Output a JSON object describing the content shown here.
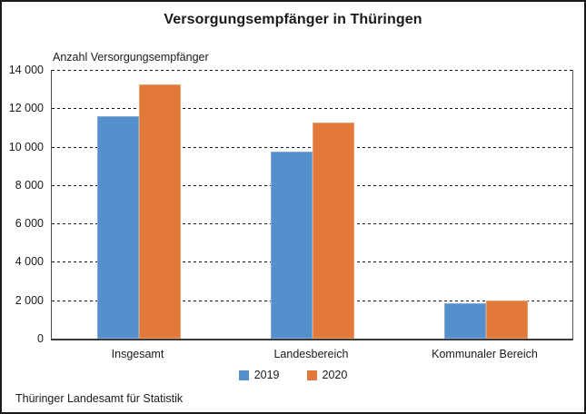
{
  "chart_data": {
    "type": "bar",
    "title": "Versorgungsempfänger in Thüringen",
    "ylabel": "Anzahl Versorgungsempfänger",
    "xlabel": "",
    "categories": [
      "Insgesamt",
      "Landesbereich",
      "Kommunaler Bereich"
    ],
    "series": [
      {
        "name": "2019",
        "color": "#5590cc",
        "border_color": "#7fabd9",
        "values": [
          11600,
          9750,
          1850
        ]
      },
      {
        "name": "2020",
        "color": "#e2783a",
        "border_color": "#ee9a64",
        "values": [
          13250,
          11250,
          2000
        ]
      }
    ],
    "ylim": [
      0,
      14000
    ],
    "ytick_step": 2000,
    "ytick_labels": [
      "0",
      "2 000",
      "4 000",
      "6 000",
      "8 000",
      "10 000",
      "12 000",
      "14 000"
    ],
    "grid": "horizontal-dashed",
    "legend_position": "bottom",
    "source": "Thüringer Landesamt für Statistik"
  }
}
